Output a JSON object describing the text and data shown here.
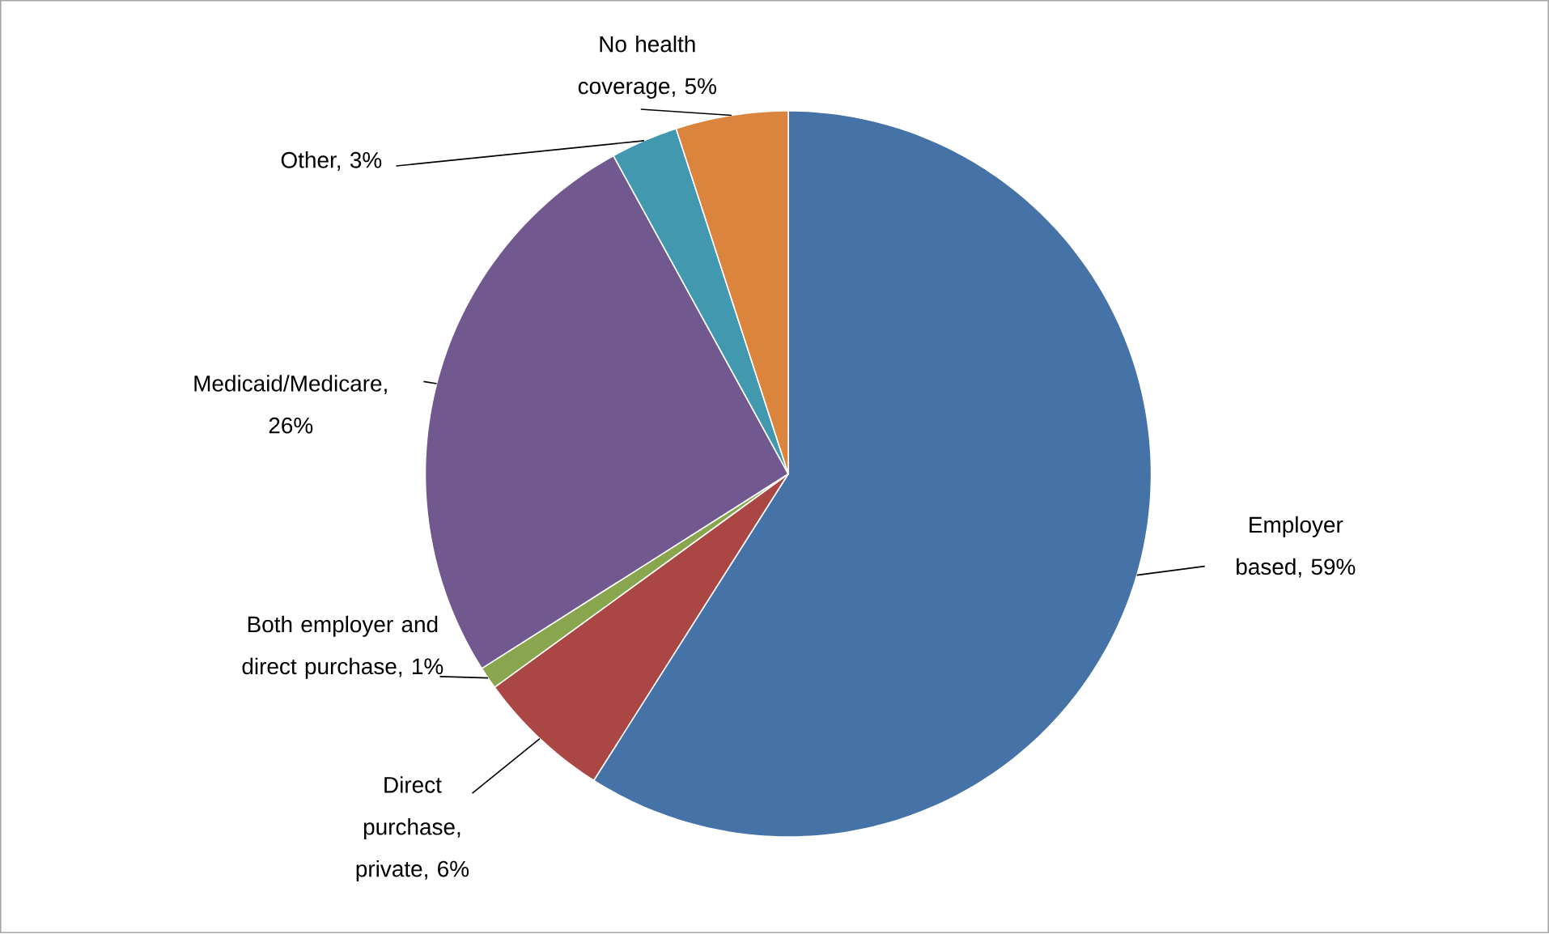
{
  "chart_data": {
    "type": "pie",
    "categories": [
      "Employer based, 59%",
      "Direct purchase, private, 6%",
      "Both employer and direct purchase, 1%",
      "Medicaid/Medicare, 26%",
      "Other, 3%",
      "No health coverage, 5%"
    ],
    "values": [
      59,
      6,
      1,
      26,
      3,
      5
    ],
    "colors": [
      "#4572a7",
      "#aa4643",
      "#89a54e",
      "#71588f",
      "#4198af",
      "#db843d"
    ]
  }
}
